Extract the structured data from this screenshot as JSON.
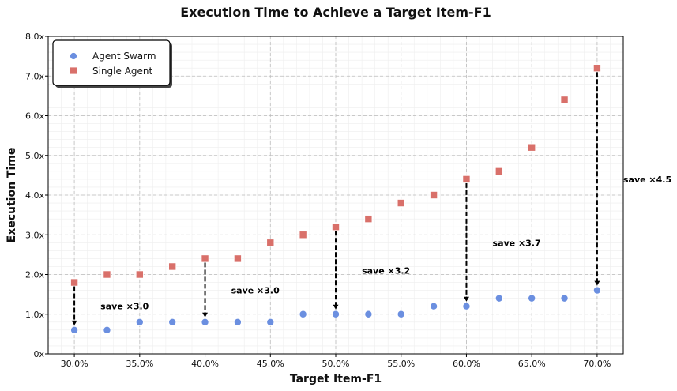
{
  "chart_data": {
    "type": "scatter",
    "title": "Execution Time to Achieve a Target Item-F1",
    "xlabel": "Target Item-F1",
    "ylabel": "Execution Time",
    "xlim": [
      28.0,
      72.0
    ],
    "ylim": [
      0,
      8.0
    ],
    "x_ticks": [
      30,
      35,
      40,
      45,
      50,
      55,
      60,
      65,
      70
    ],
    "x_tick_labels": [
      "30.0%",
      "35.0%",
      "40.0%",
      "45.0%",
      "50.0%",
      "55.0%",
      "60.0%",
      "65.0%",
      "70.0%"
    ],
    "y_ticks": [
      0,
      1,
      2,
      3,
      4,
      5,
      6,
      7,
      8
    ],
    "y_tick_labels": [
      "0x",
      "1.0x",
      "2.0x",
      "3.0x",
      "4.0x",
      "5.0x",
      "6.0x",
      "7.0x",
      "8.0x"
    ],
    "grid": true,
    "legend_position": "top-left",
    "x": [
      30.0,
      32.5,
      35.0,
      37.5,
      40.0,
      42.5,
      45.0,
      47.5,
      50.0,
      52.5,
      55.0,
      57.5,
      60.0,
      62.5,
      65.0,
      67.5,
      70.0
    ],
    "series": [
      {
        "name": "Agent Swarm",
        "marker": "circle",
        "color": "#6b8fe0",
        "values": [
          0.6,
          0.6,
          0.8,
          0.8,
          0.8,
          0.8,
          0.8,
          1.0,
          1.0,
          1.0,
          1.0,
          1.2,
          1.2,
          1.4,
          1.4,
          1.4,
          1.6
        ]
      },
      {
        "name": "Single Agent",
        "marker": "square",
        "color": "#d9706a",
        "values": [
          1.8,
          2.0,
          2.0,
          2.2,
          2.4,
          2.4,
          2.8,
          3.0,
          3.2,
          3.4,
          3.8,
          4.0,
          4.4,
          4.6,
          5.2,
          6.4,
          7.2
        ]
      }
    ],
    "annotations": [
      {
        "x": 30.0,
        "from": 1.8,
        "to": 0.6,
        "label": "save ×3.0",
        "label_x": 32.0,
        "label_y": 1.2
      },
      {
        "x": 40.0,
        "from": 2.4,
        "to": 0.8,
        "label": "save ×3.0",
        "label_x": 42.0,
        "label_y": 1.6
      },
      {
        "x": 50.0,
        "from": 3.2,
        "to": 1.0,
        "label": "save ×3.2",
        "label_x": 52.0,
        "label_y": 2.1
      },
      {
        "x": 60.0,
        "from": 4.4,
        "to": 1.2,
        "label": "save ×3.7",
        "label_x": 62.0,
        "label_y": 2.8
      },
      {
        "x": 70.0,
        "from": 7.2,
        "to": 1.6,
        "label": "save ×4.5",
        "label_x": 72.0,
        "label_y": 4.4
      }
    ]
  }
}
